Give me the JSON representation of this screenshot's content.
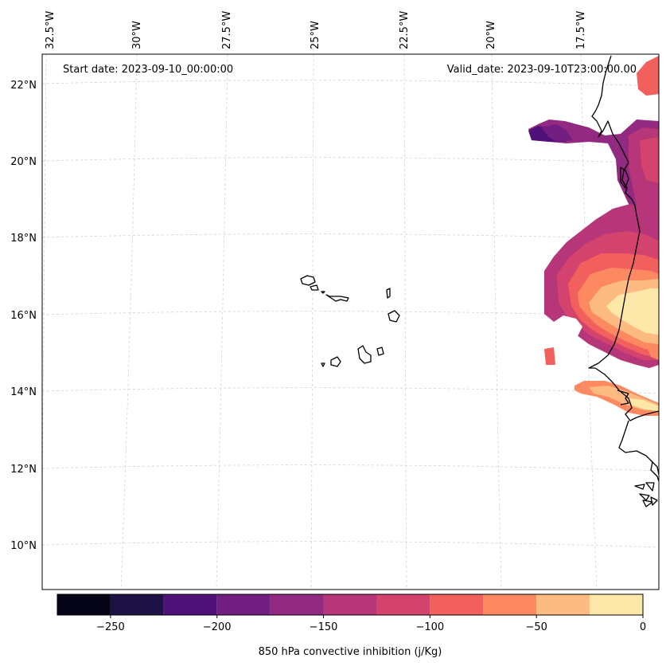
{
  "map": {
    "start_label": "Start date: 2023-09-10_00:00:00",
    "valid_label": "Valid_date: 2023-09-10T23:00:00.00",
    "lon_labels": [
      "32.5°W",
      "30°W",
      "27.5°W",
      "25°W",
      "22.5°W",
      "20°W",
      "17.5°W"
    ],
    "lat_labels": [
      "22°N",
      "20°N",
      "18°N",
      "16°N",
      "14°N",
      "12°N",
      "10°N"
    ]
  },
  "colorbar": {
    "label": "850 hPa convective inhibition (j/Kg)",
    "ticks": [
      "−250",
      "−200",
      "−150",
      "−100",
      "−50",
      "0"
    ],
    "levels": [
      -275,
      -250,
      -225,
      -200,
      -175,
      -150,
      -125,
      -100,
      -75,
      -50,
      -25,
      0
    ],
    "colors": [
      "#050416",
      "#1e1145",
      "#4f127b",
      "#721f81",
      "#912a80",
      "#b63679",
      "#d4436e",
      "#f1605d",
      "#fc8961",
      "#febb81",
      "#fde7a9"
    ]
  },
  "colors": {
    "grid": "#cccccc",
    "coast": "#000000",
    "frame": "#000000"
  }
}
